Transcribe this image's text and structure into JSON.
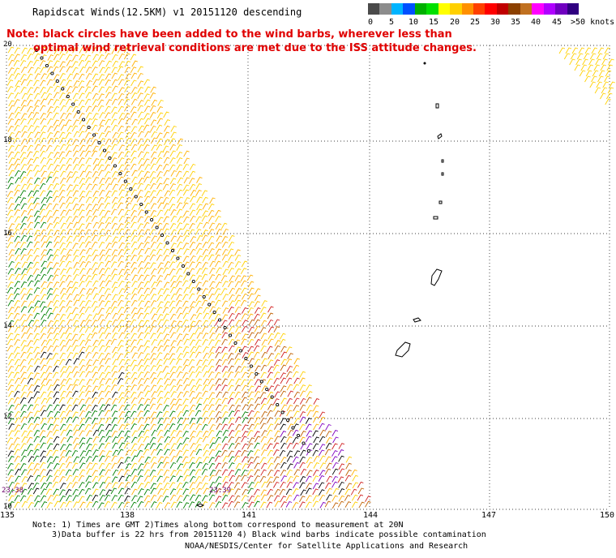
{
  "title": "Rapidscat Winds(12.5KM) v1 20151120 descending",
  "note": {
    "line1": "Note: black circles have been added to the wind barbs, wherever less than",
    "line2": "optimal wind retrieval conditions are met due to the ISS attitude changes."
  },
  "legend": {
    "colors": [
      "#4a4a4a",
      "#8c8c8c",
      "#00b4ff",
      "#0050ff",
      "#00b000",
      "#00e000",
      "#ffff00",
      "#ffd000",
      "#ff9000",
      "#ff4000",
      "#ff0000",
      "#c00000",
      "#8c4000",
      "#c07020",
      "#ff00ff",
      "#b000ff",
      "#7000c0",
      "#300080"
    ],
    "labels": [
      "0",
      "5",
      "10",
      "15",
      "20",
      "25",
      "30",
      "35",
      "40",
      "45",
      ">50 knots"
    ]
  },
  "lat_labels": [
    "20",
    "18",
    "16",
    "14",
    "12",
    "10"
  ],
  "lon_labels": [
    "135",
    "138",
    "141",
    "144",
    "147",
    "150"
  ],
  "times": {
    "left": "23:38",
    "center": "23:39"
  },
  "footnote": {
    "line1": "Note: 1) Times are GMT 2)Times along bottom correspond to measurement at 20N",
    "line2": "3)Data buffer is 22 hrs from 20151120 4) Black wind barbs indicate possible contamination"
  },
  "credit": "NOAA/NESDIS/Center for Satellite Applications and Research"
}
